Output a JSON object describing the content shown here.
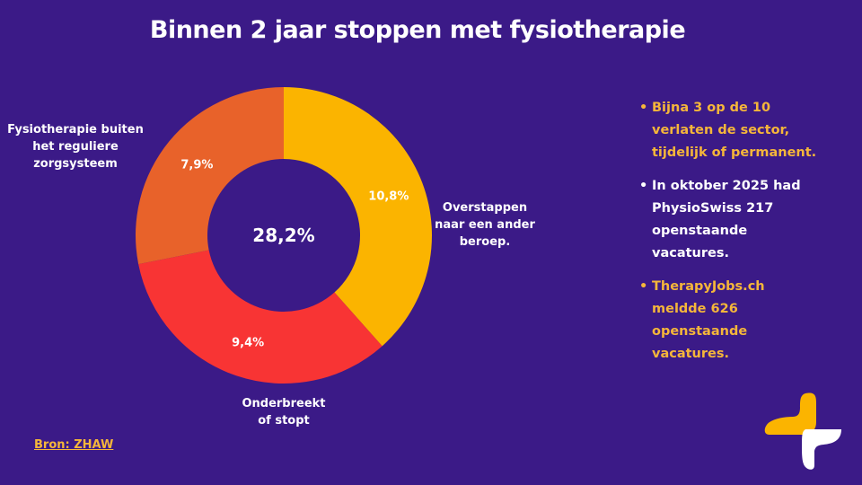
{
  "chart_data": {
    "type": "pie",
    "donut": true,
    "title": "Binnen 2 jaar stoppen met fysiotherapie",
    "center_label": "28,2%",
    "slices": [
      {
        "label": [
          "Overstappen",
          "naar een ander",
          "beroep."
        ],
        "value": 10.8,
        "value_label": "10,8%",
        "color": "#fbb400"
      },
      {
        "label": [
          "Onderbreekt",
          "of stopt"
        ],
        "value": 9.4,
        "value_label": "9,4%",
        "color": "#f83434"
      },
      {
        "label": [
          "Fysiotherapie buiten",
          "het reguliere",
          "zorgsysteem"
        ],
        "value": 7.9,
        "value_label": "7,9%",
        "color": "#e8622a"
      }
    ]
  },
  "bullets": [
    {
      "lines": [
        "Bijna 3 op de 10",
        "verlaten de sector,",
        "tijdelijk of permanent."
      ],
      "color": "#f5b63a"
    },
    {
      "lines": [
        "In oktober 2025 had",
        "PhysioSwiss 217",
        "openstaande",
        "vacatures."
      ],
      "color": "#ffffff"
    },
    {
      "lines": [
        "TherapyJobs.ch",
        "meldde 626",
        "openstaande",
        "vacatures."
      ],
      "color": "#f5b63a"
    }
  ],
  "source": "Bron: ZHAW",
  "colors": {
    "background": "#3b1a87",
    "accent": "#f5b63a"
  },
  "logo": "plus-logo-icon"
}
